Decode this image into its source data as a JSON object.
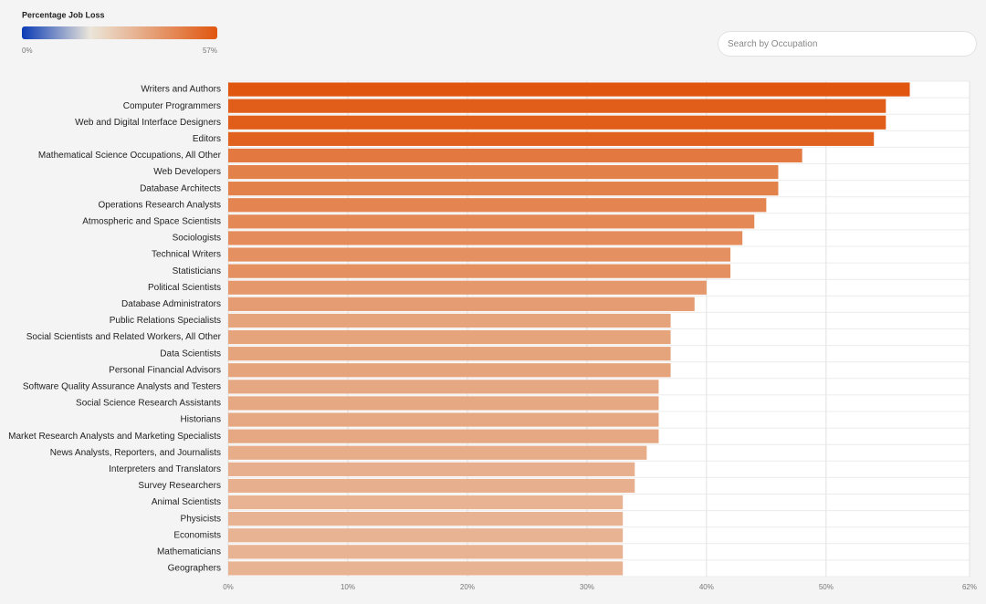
{
  "chart_data": {
    "type": "hbar",
    "legend": {
      "title": "Percentage Job Loss",
      "range": [
        0,
        57
      ],
      "ticks": [
        {
          "value": 0,
          "label": "0%"
        },
        {
          "value": 57,
          "label": "57%"
        }
      ],
      "stops": [
        [
          0,
          "#0b3bb5"
        ],
        [
          0.35,
          "#ebe6da"
        ],
        [
          1,
          "#e0560f"
        ]
      ]
    },
    "categories": [
      "Writers and Authors",
      "Computer Programmers",
      "Web and Digital Interface Designers",
      "Editors",
      "Mathematical Science Occupations, All Other",
      "Web Developers",
      "Database Architects",
      "Operations Research Analysts",
      "Atmospheric and Space Scientists",
      "Sociologists",
      "Technical Writers",
      "Statisticians",
      "Political Scientists",
      "Database Administrators",
      "Public Relations Specialists",
      "Social Scientists and Related Workers, All Other",
      "Data Scientists",
      "Personal Financial Advisors",
      "Software Quality Assurance Analysts and Testers",
      "Social Science Research Assistants",
      "Historians",
      "Market Research Analysts and Marketing Specialists",
      "News Analysts, Reporters, and Journalists",
      "Interpreters and Translators",
      "Survey Researchers",
      "Animal Scientists",
      "Physicists",
      "Economists",
      "Mathematicians",
      "Geographers"
    ],
    "values": [
      57,
      55,
      55,
      54,
      48,
      46,
      46,
      45,
      44,
      43,
      42,
      42,
      40,
      39,
      37,
      37,
      37,
      37,
      36,
      36,
      36,
      36,
      35,
      34,
      34,
      33,
      33,
      33,
      33,
      33
    ],
    "xlim": [
      0,
      62
    ],
    "xticks": [
      {
        "value": 0,
        "label": "0%"
      },
      {
        "value": 10,
        "label": "10%"
      },
      {
        "value": 20,
        "label": "20%"
      },
      {
        "value": 30,
        "label": "30%"
      },
      {
        "value": 40,
        "label": "40%"
      },
      {
        "value": 50,
        "label": "50%"
      },
      {
        "value": 62,
        "label": "62%"
      }
    ],
    "grid": true
  },
  "search": {
    "placeholder": "Search by Occupation"
  }
}
